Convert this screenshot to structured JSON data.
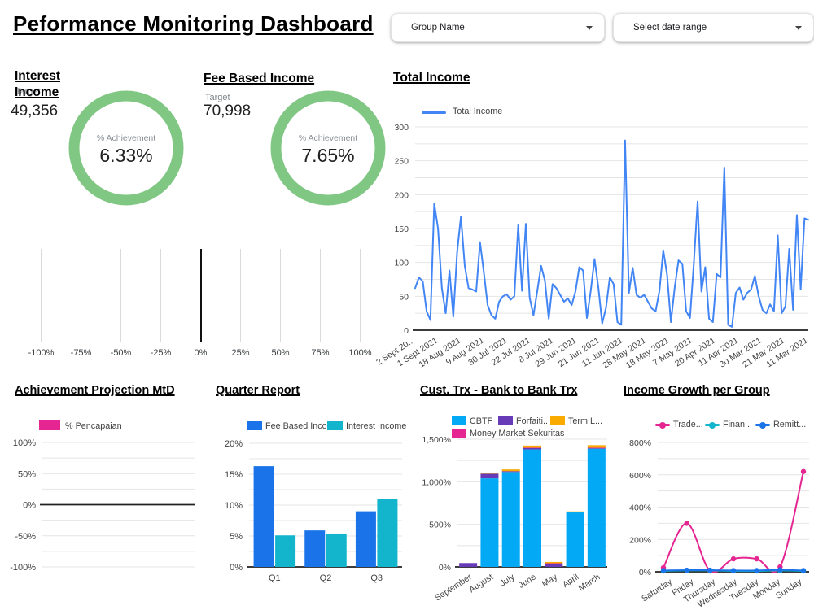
{
  "page": {
    "title": "Peformance Monitoring Dashboard"
  },
  "filters": {
    "group": {
      "label": "Group Name"
    },
    "date_range": {
      "label": "Select date range"
    }
  },
  "gauges": {
    "interest": {
      "title": "Interest Income",
      "target_label": "Target",
      "target_value": "49,356",
      "achievement_label": "% Achievement",
      "achievement_value": "6.33%",
      "ring_color": "#81c784"
    },
    "fee": {
      "title": "Fee Based Income",
      "target_label": "Target",
      "target_value": "70,998",
      "achievement_label": "% Achievement",
      "achievement_value": "7.65%",
      "ring_color": "#81c784"
    },
    "axis_ticks": [
      "-100%",
      "-75%",
      "-50%",
      "-25%",
      "0%",
      "25%",
      "50%",
      "75%",
      "100%"
    ]
  },
  "chart_data": [
    {
      "id": "total-income",
      "type": "line",
      "title": "Total Income",
      "legend": [
        {
          "name": "Total Income",
          "color": "#4285f4"
        }
      ],
      "ylim": [
        0,
        300
      ],
      "ytick_minor": 25,
      "ytick_major": 50,
      "yfmt": "plain",
      "grid": true,
      "legend_position": "top-left",
      "x_labels": [
        "2 Sept 20...",
        "1 Sept 2021",
        "18 Aug 2021",
        "9 Aug 2021",
        "30 Jul 2021",
        "22 Jul 2021",
        "8 Jul 2021",
        "29 Jun 2021",
        "21 Jun 2021",
        "11 Jun 2021",
        "28 May 2021",
        "18 May 2021",
        "7 May 2021",
        "20 Apr 2021",
        "11 Apr 2021",
        "30 Mar 2021",
        "21 Mar 2021",
        "11 Mar 2021"
      ],
      "series": [
        {
          "name": "Total Income",
          "color": "#4285f4",
          "values": [
            62,
            78,
            72,
            28,
            15,
            187,
            150,
            62,
            25,
            88,
            20,
            115,
            168,
            95,
            62,
            60,
            57,
            130,
            85,
            37,
            22,
            17,
            42,
            50,
            53,
            45,
            50,
            155,
            58,
            157,
            48,
            22,
            58,
            95,
            73,
            17,
            68,
            62,
            52,
            42,
            47,
            37,
            57,
            93,
            88,
            18,
            58,
            105,
            63,
            10,
            33,
            78,
            68,
            12,
            8,
            280,
            55,
            92,
            52,
            48,
            52,
            42,
            32,
            28,
            58,
            118,
            82,
            12,
            63,
            103,
            98,
            28,
            18,
            98,
            190,
            57,
            93,
            17,
            12,
            83,
            78,
            240,
            8,
            5,
            55,
            63,
            45,
            55,
            60,
            80,
            50,
            30,
            25,
            38,
            28,
            140,
            25,
            35,
            120,
            30,
            170,
            60,
            165,
            163
          ]
        }
      ]
    },
    {
      "id": "achievement-mtd",
      "type": "bar",
      "title": "Achievement Projection MtD",
      "legend": [
        {
          "name": "% Pencapaian",
          "color": "#e52592"
        }
      ],
      "categories": [],
      "ylim": [
        -100,
        100
      ],
      "ytick_minor": 25,
      "ytick_major": 50,
      "yfmt": "pct",
      "grid": true,
      "series": [
        {
          "name": "% Pencapaian",
          "color": "#e52592",
          "values": []
        }
      ]
    },
    {
      "id": "quarter-report",
      "type": "bar",
      "title": "Quarter Report",
      "legend": [
        {
          "name": "Fee Based Inco...",
          "color": "#1a73e8"
        },
        {
          "name": "Interest Income",
          "color": "#12b5cb"
        }
      ],
      "categories": [
        "Q1",
        "Q2",
        "Q3"
      ],
      "ylim": [
        0,
        20
      ],
      "ytick_minor": 2.5,
      "ytick_major": 5,
      "yfmt": "pct",
      "grid": true,
      "series": [
        {
          "name": "Fee Based Inco...",
          "color": "#1a73e8",
          "values": [
            16.3,
            5.9,
            9
          ]
        },
        {
          "name": "Interest Income",
          "color": "#12b5cb",
          "values": [
            5.1,
            5.4,
            11
          ]
        }
      ]
    },
    {
      "id": "cust-trx",
      "type": "stacked-bar",
      "title": "Cust. Trx - Bank to Bank Trx",
      "legend": [
        {
          "name": "CBTF",
          "color": "#03a9f4"
        },
        {
          "name": "Forfaiti...",
          "color": "#673ab7"
        },
        {
          "name": "Term L...",
          "color": "#f9ab00"
        },
        {
          "name": "Money Market Sekuritas",
          "color": "#e52592"
        }
      ],
      "categories": [
        "September",
        "August",
        "July",
        "June",
        "May",
        "April",
        "March"
      ],
      "ylim": [
        0,
        1500
      ],
      "ytick_minor": 250,
      "ytick_major": 500,
      "yfmt": "pctComma",
      "grid": true,
      "series": [
        {
          "name": "CBTF",
          "color": "#03a9f4",
          "values": [
            0,
            1040,
            1115,
            1380,
            0,
            640,
            1390
          ]
        },
        {
          "name": "Forfaiti...",
          "color": "#673ab7",
          "values": [
            45,
            55,
            10,
            15,
            35,
            0,
            0
          ]
        },
        {
          "name": "Money Market Sekuritas",
          "color": "#e52592",
          "values": [
            0,
            0,
            0,
            5,
            8,
            0,
            10
          ]
        },
        {
          "name": "Term L...",
          "color": "#f9ab00",
          "values": [
            0,
            10,
            20,
            25,
            15,
            12,
            30
          ]
        }
      ]
    },
    {
      "id": "income-growth",
      "type": "line",
      "title": "Income Growth per Group",
      "legend": [
        {
          "name": "Trade...",
          "color": "#e52592"
        },
        {
          "name": "Finan...",
          "color": "#12b5cb"
        },
        {
          "name": "Remitt...",
          "color": "#1a73e8"
        }
      ],
      "categories": [
        "Saturday",
        "Friday",
        "Thursday",
        "Wednesday",
        "Tuesday",
        "Monday",
        "Sunday"
      ],
      "ylim": [
        0,
        800
      ],
      "ytick_minor": 100,
      "ytick_major": 200,
      "yfmt": "pct",
      "grid": true,
      "markers": true,
      "smooth": true,
      "series": [
        {
          "name": "Trade...",
          "color": "#e52592",
          "values": [
            25,
            300,
            5,
            80,
            80,
            30,
            620
          ]
        },
        {
          "name": "Finan...",
          "color": "#12b5cb",
          "values": [
            5,
            8,
            8,
            5,
            5,
            8,
            5
          ]
        },
        {
          "name": "Remitt...",
          "color": "#1a73e8",
          "values": [
            8,
            10,
            10,
            8,
            8,
            12,
            8
          ]
        }
      ]
    }
  ]
}
